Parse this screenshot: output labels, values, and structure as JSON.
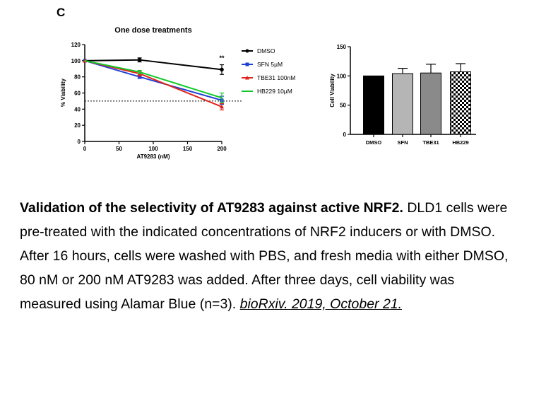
{
  "panel_letter": "C",
  "chart_data": [
    {
      "type": "line",
      "title": "One dose treatments",
      "xlabel": "AT9283 (nM)",
      "ylabel": "% Viability",
      "xlim": [
        0,
        200
      ],
      "ylim": [
        0,
        120
      ],
      "x_ticks": [
        0,
        50,
        100,
        150,
        200
      ],
      "y_ticks": [
        0,
        20,
        40,
        60,
        80,
        100,
        120
      ],
      "x": [
        0,
        80,
        200
      ],
      "reference_line": 50,
      "annotation": "**",
      "legend_position": "right",
      "series": [
        {
          "name": "DMSO",
          "values": [
            100,
            101,
            89
          ],
          "errors": [
            0,
            2.5,
            6
          ],
          "color": "#000000",
          "marker": "circle"
        },
        {
          "name": "SFN 5µM",
          "values": [
            100,
            80,
            51
          ],
          "errors": [
            0,
            2,
            5
          ],
          "color": "#1f3fd6",
          "marker": "square"
        },
        {
          "name": "TBE31 100nM",
          "values": [
            100,
            84,
            43
          ],
          "errors": [
            0,
            3,
            4
          ],
          "color": "#e0251b",
          "marker": "triangle"
        },
        {
          "name": "HB229 10µM",
          "values": [
            100,
            86,
            54
          ],
          "errors": [
            0,
            2,
            6
          ],
          "color": "#12c92a",
          "marker": "none"
        }
      ]
    },
    {
      "type": "bar",
      "ylabel": "Cell Viability",
      "ylim": [
        0,
        150
      ],
      "y_ticks": [
        0,
        50,
        100,
        150
      ],
      "categories": [
        "DMSO",
        "SFN",
        "TBE31",
        "HB229"
      ],
      "values": [
        100,
        104,
        105,
        107
      ],
      "errors": [
        0,
        9,
        15,
        14
      ],
      "colors": [
        "#000000",
        "#b5b5b5",
        "#8a8a8a",
        "checker"
      ]
    }
  ],
  "caption": {
    "title": "Validation of the selectivity of AT9283 against active NRF2.",
    "body": " DLD1 cells were pre-treated with the indicated concentrations of NRF2 inducers or with DMSO. After 16 hours, cells were washed with PBS, and fresh media with either DMSO, 80 nM or 200 nM AT9283 was added. After three days, cell viability was measured using Alamar Blue (n=3). ",
    "citation": "bioRxiv. 2019, October 21."
  }
}
